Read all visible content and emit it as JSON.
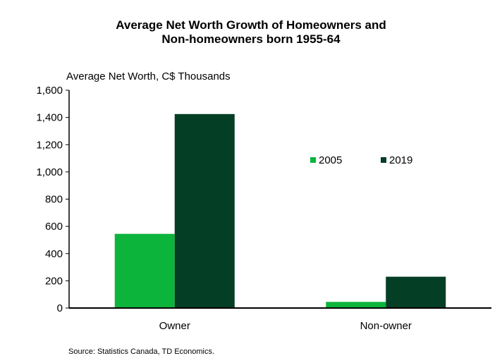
{
  "chart_data": {
    "type": "bar",
    "title_line1": "Average Net Worth Growth of Homeowners and",
    "title_line2": "Non-homeowners born 1955-64",
    "ylabel": "Average Net Worth, C$ Thousands",
    "categories": [
      "Owner",
      "Non-owner"
    ],
    "series": [
      {
        "name": "2005",
        "color": "#0cb43c",
        "values": [
          545,
          45
        ]
      },
      {
        "name": "2019",
        "color": "#043e24",
        "values": [
          1425,
          230
        ]
      }
    ],
    "ylim": [
      0,
      1600
    ],
    "yticks": [
      0,
      200,
      400,
      600,
      800,
      1000,
      1200,
      1400,
      1600
    ],
    "ytick_labels": [
      "0",
      "200",
      "400",
      "600",
      "800",
      "1,000",
      "1,200",
      "1,400",
      "1,600"
    ],
    "grid": false,
    "legend_position": "right"
  },
  "source": "Source: Statistics Canada, TD Economics."
}
